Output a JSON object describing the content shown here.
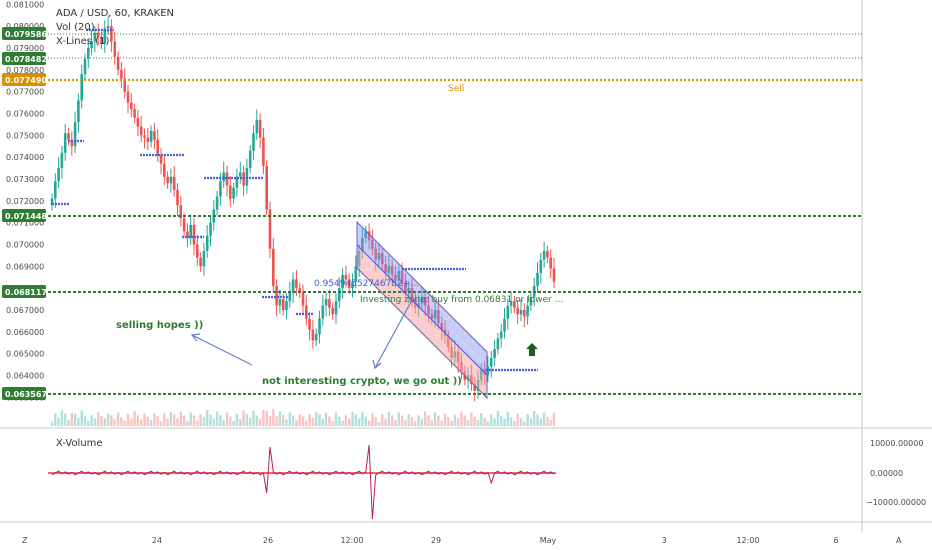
{
  "header": {
    "title": "ADA / USD, 60, KRAKEN",
    "volume_label": "Vol (20)",
    "xlines_label": "X-Lines (1)"
  },
  "volume_panel": {
    "label": "X-Volume",
    "ticks": [
      "10000.00000",
      "0.00000",
      "−10000.00000"
    ]
  },
  "corner_left": "Z",
  "corner_right": "A",
  "colors": {
    "up": "#26a69a",
    "down": "#ef5350",
    "resistance_green": "#2e7d32",
    "sell_orange": "#d88f00",
    "channel_blue": "#8a8ff0",
    "channel_red": "#f4a6a6",
    "xline": "#4a5ee0",
    "volume_line": "#c2185b",
    "volume_zero": "#e53935"
  },
  "chart_data": {
    "type": "candlestick",
    "title": "ADA / USD, 60, KRAKEN",
    "x_tick_labels": [
      "24",
      "26",
      "12:00",
      "29",
      "May",
      "3",
      "12:00",
      "6"
    ],
    "y_tick_labels": [
      "0.081000",
      "0.080000",
      "0.079000",
      "0.078000",
      "0.077000",
      "0.076000",
      "0.075000",
      "0.074000",
      "0.073000",
      "0.072000",
      "0.071000",
      "0.070000",
      "0.069000",
      "0.067000",
      "0.066000",
      "0.065000",
      "0.064000",
      "0.063000"
    ],
    "ylim": [
      0.0626,
      0.0812
    ],
    "price_levels": [
      {
        "value": "0.079586",
        "style": "green-dotted"
      },
      {
        "value": "0.078482",
        "style": "green-dotted"
      },
      {
        "value": "0.077490",
        "style": "orange-dashed",
        "label": "Sell"
      },
      {
        "value": "0.071448",
        "style": "green-dashed"
      },
      {
        "value": "0.068117",
        "style": "green-dashed"
      },
      {
        "value": "0.063567",
        "style": "green-dashed"
      }
    ],
    "annotations": [
      {
        "text": "selling hopes ))"
      },
      {
        "text": "not interesting crypto, we go out ))"
      },
      {
        "text": "Investing zone: buy from 0.06831 or lower ..."
      },
      {
        "text": "0.95494552746782+..."
      }
    ],
    "candles_close": [
      0.0721,
      0.0729,
      0.0735,
      0.0742,
      0.0751,
      0.0748,
      0.0745,
      0.0756,
      0.0766,
      0.0778,
      0.0785,
      0.079,
      0.0793,
      0.0797,
      0.0795,
      0.0792,
      0.0799,
      0.08,
      0.0793,
      0.0786,
      0.078,
      0.0776,
      0.077,
      0.0765,
      0.0762,
      0.0758,
      0.0754,
      0.075,
      0.0749,
      0.0747,
      0.0752,
      0.0748,
      0.0741,
      0.0737,
      0.0731,
      0.0728,
      0.0731,
      0.0725,
      0.0718,
      0.0712,
      0.0706,
      0.0703,
      0.0709,
      0.07,
      0.0694,
      0.069,
      0.0697,
      0.0704,
      0.071,
      0.0716,
      0.0722,
      0.0729,
      0.0733,
      0.0727,
      0.0721,
      0.0726,
      0.0731,
      0.0733,
      0.0727,
      0.0735,
      0.0743,
      0.0751,
      0.0757,
      0.0749,
      0.0736,
      0.0716,
      0.0698,
      0.0681,
      0.0672,
      0.0675,
      0.067,
      0.0674,
      0.0678,
      0.0684,
      0.068,
      0.0678,
      0.0672,
      0.0666,
      0.0661,
      0.0656,
      0.0659,
      0.0666,
      0.0672,
      0.0675,
      0.0671,
      0.0668,
      0.0674,
      0.068,
      0.0686,
      0.0684,
      0.068,
      0.0683,
      0.069,
      0.0697,
      0.0703,
      0.0706,
      0.0702,
      0.0698,
      0.0693,
      0.0696,
      0.0691,
      0.0687,
      0.069,
      0.0686,
      0.0684,
      0.0688,
      0.0682,
      0.0678,
      0.068,
      0.0675,
      0.0671,
      0.0673,
      0.0676,
      0.0672,
      0.0668,
      0.0666,
      0.067,
      0.0664,
      0.0661,
      0.0658,
      0.0653,
      0.0648,
      0.0651,
      0.0646,
      0.0642,
      0.0638,
      0.064,
      0.0636,
      0.0633,
      0.0638,
      0.0643,
      0.064,
      0.0644,
      0.0648,
      0.0652,
      0.0657,
      0.066,
      0.0666,
      0.0672,
      0.0674,
      0.0671,
      0.0668,
      0.067,
      0.0667,
      0.0672,
      0.0676,
      0.0681,
      0.0687,
      0.0693,
      0.0697,
      0.0694,
      0.0689,
      0.0683
    ]
  }
}
